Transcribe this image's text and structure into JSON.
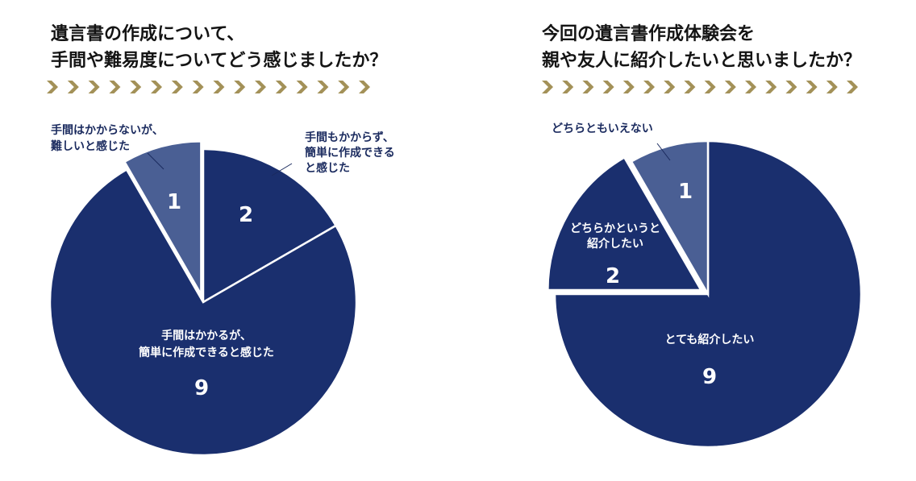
{
  "chart_data": [
    {
      "type": "pie",
      "title": [
        "遺言書の作成について、",
        "手間や難易度についてどう感じましたか？"
      ],
      "series": [
        {
          "categories": [
            "手間もかからず、簡単に作成できると感じた",
            "手間はかかるが、簡単に作成できると感じた",
            "手間はかからないが、難しいと感じた"
          ],
          "values": [
            2,
            9,
            1
          ]
        }
      ],
      "slices": [
        {
          "value": 2,
          "label_lines": [
            "手間もかからず、",
            "簡単に作成できる",
            "と感じた"
          ],
          "color": "#1a2f6e"
        },
        {
          "value": 9,
          "label_lines": [
            "手間はかかるが、",
            "簡単に作成できると感じた"
          ],
          "color": "#1a2f6e"
        },
        {
          "value": 1,
          "label_lines": [
            "手間はかからないが、",
            "難しいと感じた"
          ],
          "color": "#4a5f94"
        }
      ]
    },
    {
      "type": "pie",
      "title": [
        "今回の遺言書作成体験会を",
        "親や友人に紹介したいと思いましたか？"
      ],
      "series": [
        {
          "categories": [
            "とても紹介したい",
            "どちらかというと紹介したい",
            "どちらともいえない"
          ],
          "values": [
            9,
            2,
            1
          ]
        }
      ],
      "slices": [
        {
          "value": 9,
          "label_lines": [
            "とても紹介したい"
          ],
          "color": "#1a2f6e"
        },
        {
          "value": 2,
          "label_lines": [
            "どちらかというと",
            "紹介したい"
          ],
          "color": "#1a2f6e"
        },
        {
          "value": 1,
          "label_lines": [
            "どちらともいえない"
          ],
          "color": "#4a5f94"
        }
      ]
    }
  ],
  "colors": {
    "dark_slice": "#1a2f6e",
    "light_slice": "#4a5f94",
    "arrows": "#a39158"
  }
}
